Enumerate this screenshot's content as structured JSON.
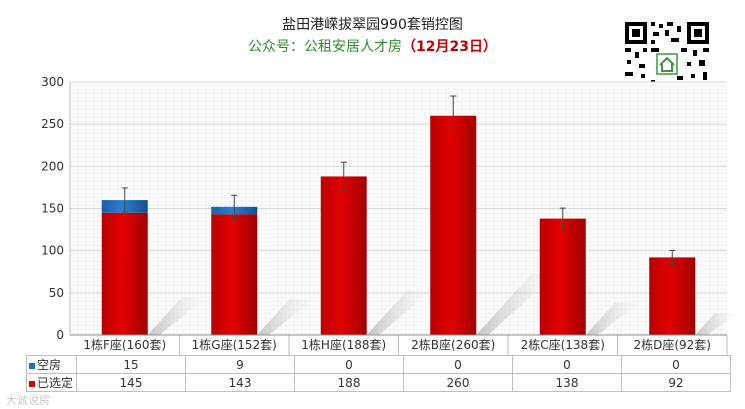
{
  "header": {
    "title": "盐田港嵘拔翠园990套销控图",
    "subtitle_prefix": "公众号：公租安居人才房",
    "subtitle_date": "（12月23日）"
  },
  "watermark": "大诚说房",
  "colors": {
    "vacant": "#1f6fc0",
    "selected": "#d40000",
    "grid": "#d9d9d9",
    "errorbar": "#444444"
  },
  "chart_data": {
    "type": "bar",
    "stacked": true,
    "categories": [
      "1栋F座(160套)",
      "1栋G座(152套)",
      "1栋H座(188套)",
      "2栋B座(260套)",
      "2栋C座(138套)",
      "2栋D座(92套)"
    ],
    "series": [
      {
        "name": "已选定",
        "values": [
          145,
          143,
          188,
          260,
          138,
          92
        ]
      },
      {
        "name": "空房",
        "values": [
          15,
          9,
          0,
          0,
          0,
          0
        ]
      }
    ],
    "ylim": [
      0,
      300
    ],
    "yticks": [
      "0",
      "50",
      "100",
      "150",
      "200",
      "250",
      "300"
    ],
    "grid": true,
    "error_bars": true,
    "legend": "data-table"
  },
  "table": {
    "rows": [
      {
        "label": "空房",
        "values": [
          "15",
          "9",
          "0",
          "0",
          "0",
          "0"
        ]
      },
      {
        "label": "已选定",
        "values": [
          "145",
          "143",
          "188",
          "260",
          "138",
          "92"
        ]
      }
    ]
  }
}
